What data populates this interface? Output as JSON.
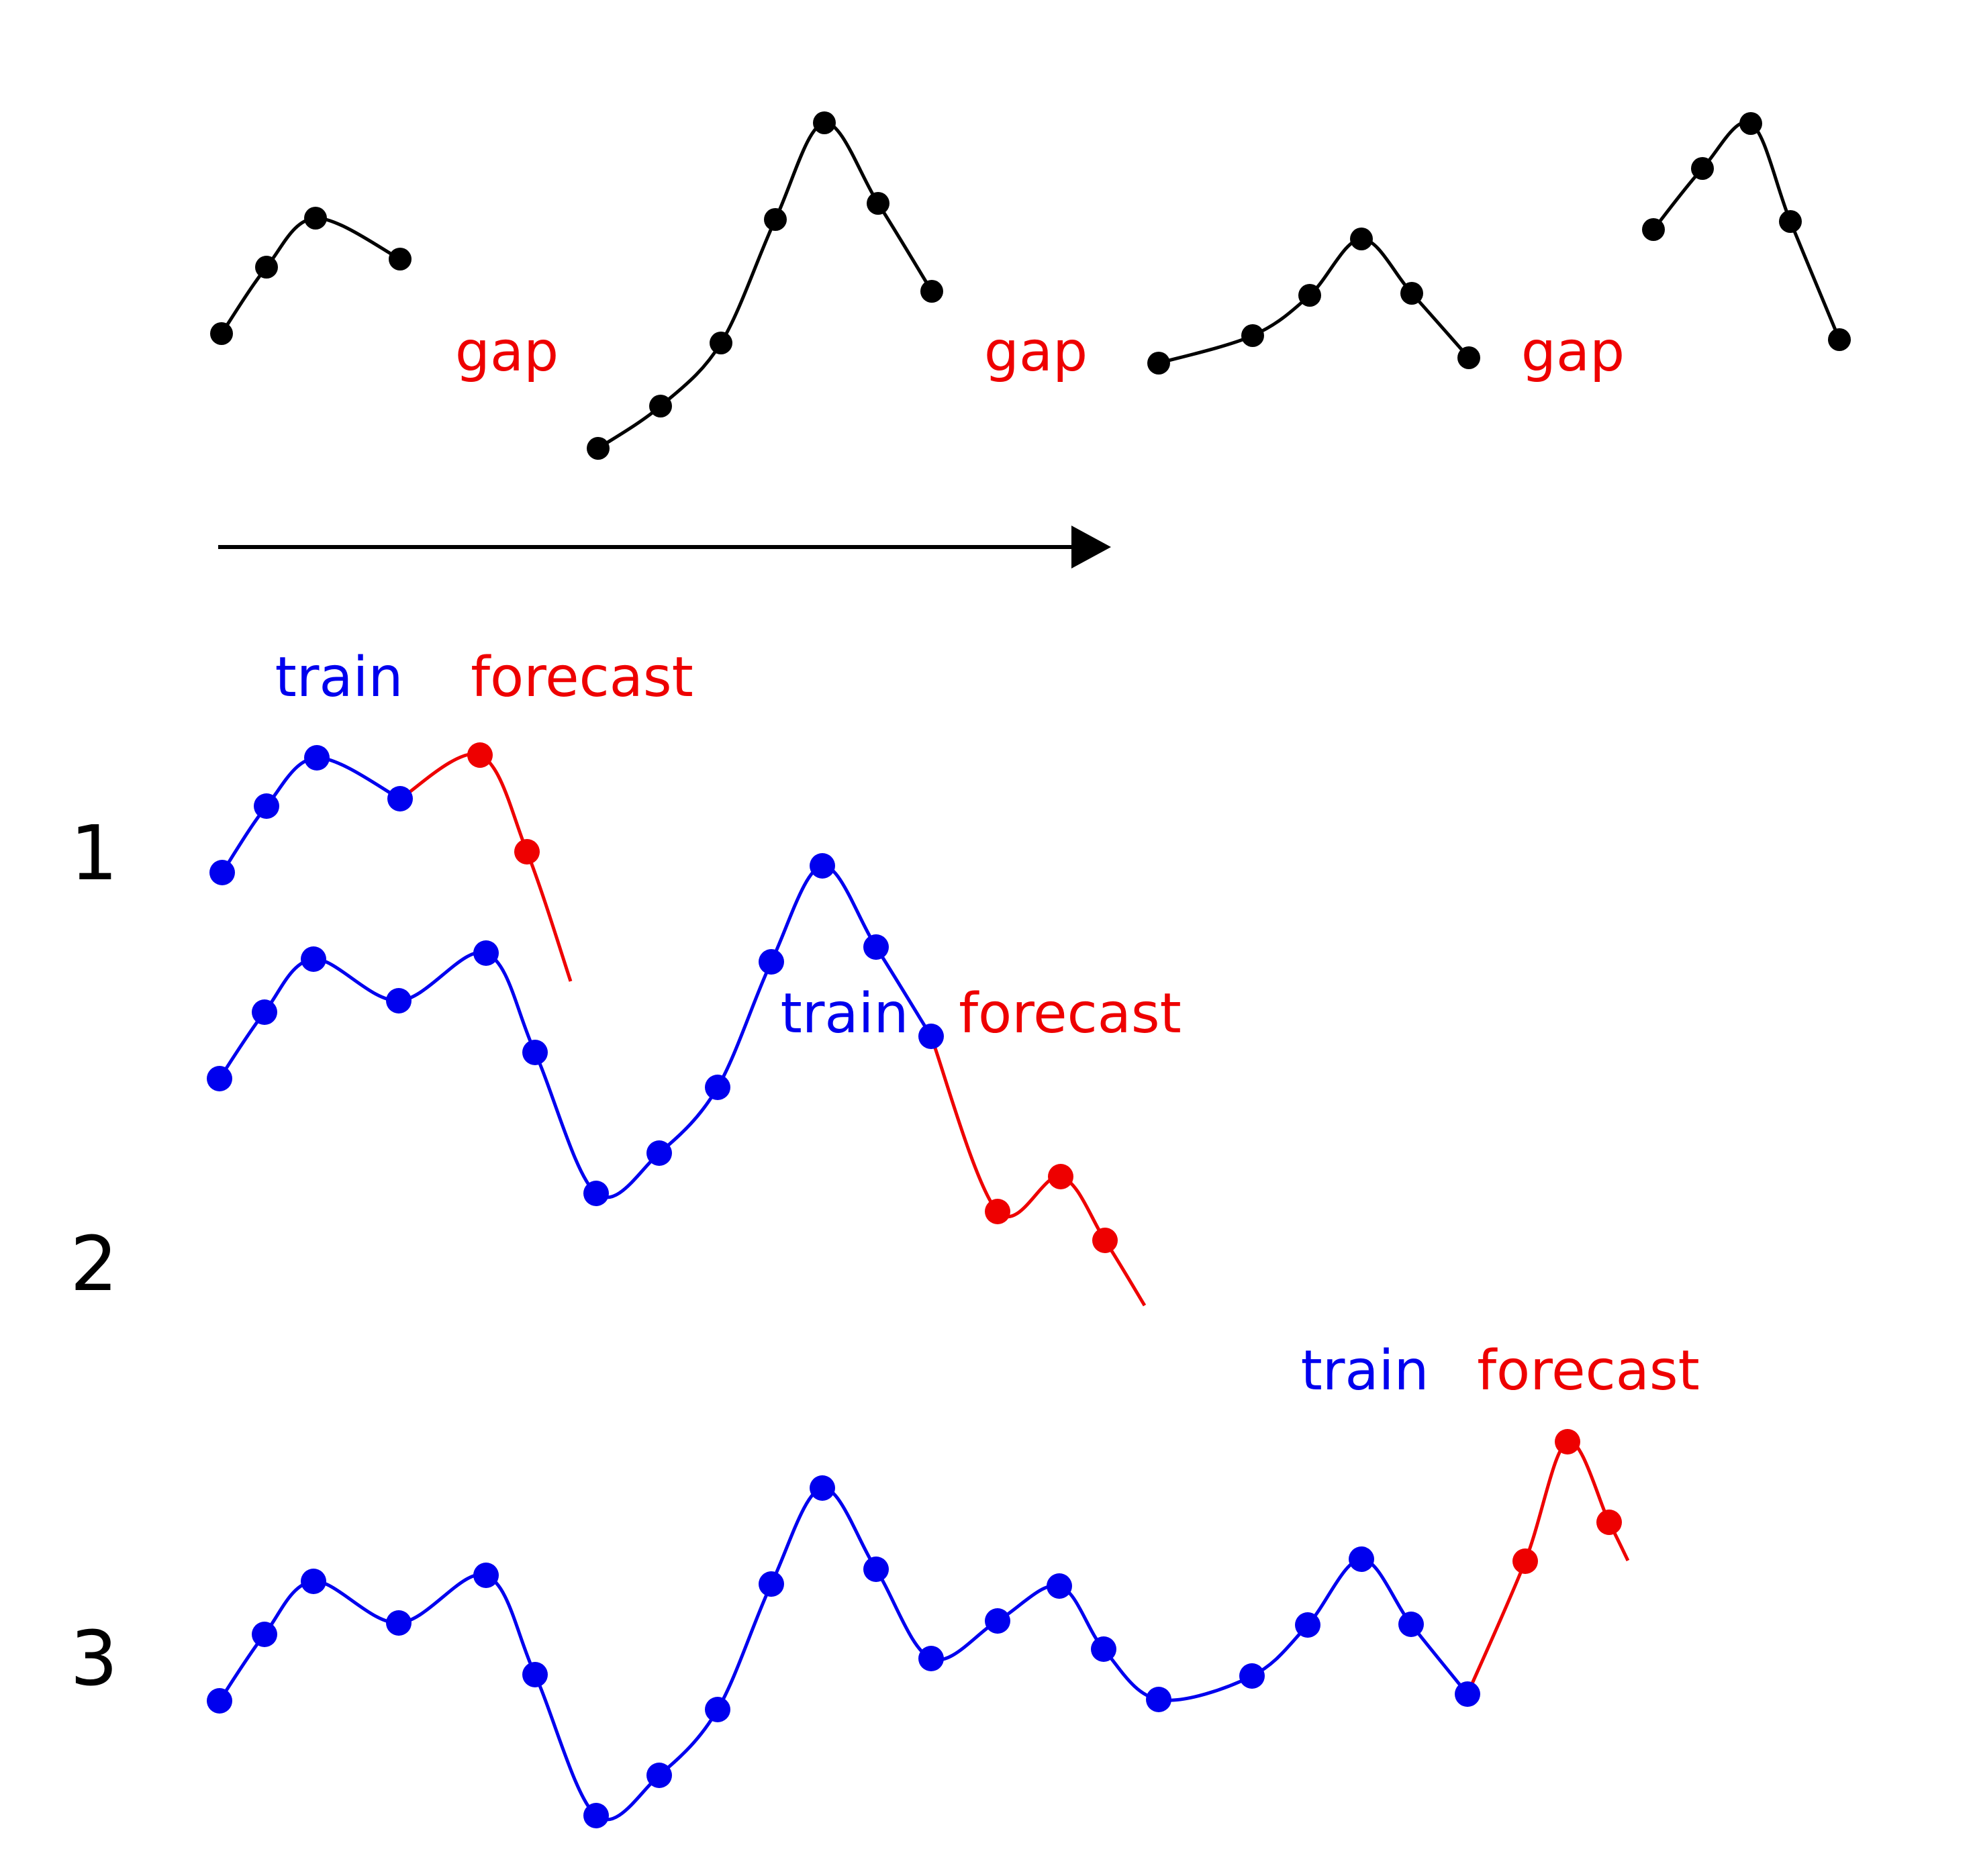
{
  "colors": {
    "observed": "#000000",
    "train": "#0000ee",
    "forecast": "#ee0000",
    "gap": "#ee0000",
    "arrow": "#000000"
  },
  "top": {
    "gap_labels": [
      "gap",
      "gap",
      "gap"
    ]
  },
  "rows": [
    {
      "number": "1",
      "train_label": "train",
      "forecast_label": "forecast"
    },
    {
      "number": "2",
      "train_label": "train",
      "forecast_label": "forecast"
    },
    {
      "number": "3",
      "train_label": "train",
      "forecast_label": "forecast"
    }
  ]
}
